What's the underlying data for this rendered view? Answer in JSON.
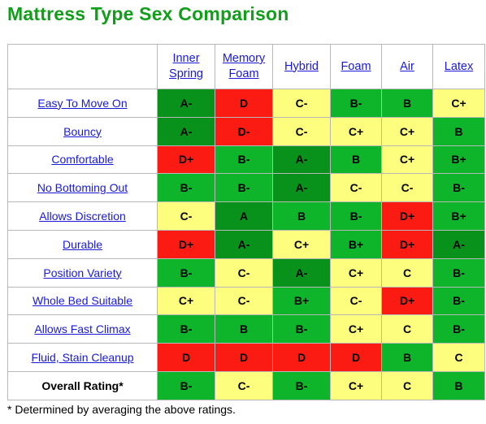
{
  "title": "Mattress Type Sex Comparison",
  "columns": [
    {
      "line1": "Inner",
      "line2": "Spring"
    },
    {
      "line1": "Memory",
      "line2": "Foam"
    },
    {
      "line1": "Hybrid",
      "line2": ""
    },
    {
      "line1": "Foam",
      "line2": ""
    },
    {
      "line1": "Air",
      "line2": ""
    },
    {
      "line1": "Latex",
      "line2": ""
    }
  ],
  "rows": [
    {
      "label": "Easy To Move On",
      "link": true,
      "cells": [
        {
          "grade": "A-",
          "color": "dark-green"
        },
        {
          "grade": "D",
          "color": "red"
        },
        {
          "grade": "C-",
          "color": "yellow"
        },
        {
          "grade": "B-",
          "color": "green"
        },
        {
          "grade": "B",
          "color": "green"
        },
        {
          "grade": "C+",
          "color": "yellow"
        }
      ]
    },
    {
      "label": "Bouncy",
      "link": true,
      "cells": [
        {
          "grade": "A-",
          "color": "dark-green"
        },
        {
          "grade": "D-",
          "color": "red"
        },
        {
          "grade": "C-",
          "color": "yellow"
        },
        {
          "grade": "C+",
          "color": "yellow"
        },
        {
          "grade": "C+",
          "color": "yellow"
        },
        {
          "grade": "B",
          "color": "green"
        }
      ]
    },
    {
      "label": "Comfortable",
      "link": true,
      "cells": [
        {
          "grade": "D+",
          "color": "red"
        },
        {
          "grade": "B-",
          "color": "green"
        },
        {
          "grade": "A-",
          "color": "dark-green"
        },
        {
          "grade": "B",
          "color": "green"
        },
        {
          "grade": "C+",
          "color": "yellow"
        },
        {
          "grade": "B+",
          "color": "green"
        }
      ]
    },
    {
      "label": "No Bottoming Out",
      "link": true,
      "cells": [
        {
          "grade": "B-",
          "color": "green"
        },
        {
          "grade": "B-",
          "color": "green"
        },
        {
          "grade": "A-",
          "color": "dark-green"
        },
        {
          "grade": "C-",
          "color": "yellow"
        },
        {
          "grade": "C-",
          "color": "yellow"
        },
        {
          "grade": "B-",
          "color": "green"
        }
      ]
    },
    {
      "label": "Allows Discretion",
      "link": true,
      "cells": [
        {
          "grade": "C-",
          "color": "yellow"
        },
        {
          "grade": "A",
          "color": "dark-green"
        },
        {
          "grade": "B",
          "color": "green"
        },
        {
          "grade": "B-",
          "color": "green"
        },
        {
          "grade": "D+",
          "color": "red"
        },
        {
          "grade": "B+",
          "color": "green"
        }
      ]
    },
    {
      "label": "Durable",
      "link": true,
      "cells": [
        {
          "grade": "D+",
          "color": "red"
        },
        {
          "grade": "A-",
          "color": "dark-green"
        },
        {
          "grade": "C+",
          "color": "yellow"
        },
        {
          "grade": "B+",
          "color": "green"
        },
        {
          "grade": "D+",
          "color": "red"
        },
        {
          "grade": "A-",
          "color": "dark-green"
        }
      ]
    },
    {
      "label": "Position Variety",
      "link": true,
      "cells": [
        {
          "grade": "B-",
          "color": "green"
        },
        {
          "grade": "C-",
          "color": "yellow"
        },
        {
          "grade": "A-",
          "color": "dark-green"
        },
        {
          "grade": "C+",
          "color": "yellow"
        },
        {
          "grade": "C",
          "color": "yellow"
        },
        {
          "grade": "B-",
          "color": "green"
        }
      ]
    },
    {
      "label": "Whole Bed Suitable",
      "link": true,
      "cells": [
        {
          "grade": "C+",
          "color": "yellow"
        },
        {
          "grade": "C-",
          "color": "yellow"
        },
        {
          "grade": "B+",
          "color": "green"
        },
        {
          "grade": "C-",
          "color": "yellow"
        },
        {
          "grade": "D+",
          "color": "red"
        },
        {
          "grade": "B-",
          "color": "green"
        }
      ]
    },
    {
      "label": "Allows Fast Climax",
      "link": true,
      "cells": [
        {
          "grade": "B-",
          "color": "green"
        },
        {
          "grade": "B",
          "color": "green"
        },
        {
          "grade": "B-",
          "color": "green"
        },
        {
          "grade": "C+",
          "color": "yellow"
        },
        {
          "grade": "C",
          "color": "yellow"
        },
        {
          "grade": "B-",
          "color": "green"
        }
      ]
    },
    {
      "label": "Fluid, Stain Cleanup",
      "link": true,
      "cells": [
        {
          "grade": "D",
          "color": "red"
        },
        {
          "grade": "D",
          "color": "red"
        },
        {
          "grade": "D",
          "color": "red"
        },
        {
          "grade": "D",
          "color": "red"
        },
        {
          "grade": "B",
          "color": "green"
        },
        {
          "grade": "C",
          "color": "yellow"
        }
      ]
    },
    {
      "label": "Overall Rating*",
      "link": false,
      "cells": [
        {
          "grade": "B-",
          "color": "green"
        },
        {
          "grade": "C-",
          "color": "yellow"
        },
        {
          "grade": "B-",
          "color": "green"
        },
        {
          "grade": "C+",
          "color": "yellow"
        },
        {
          "grade": "C",
          "color": "yellow"
        },
        {
          "grade": "B",
          "color": "green"
        }
      ]
    }
  ],
  "footnote": "* Determined by averaging the above ratings.",
  "palette": {
    "green": "#0eb52a",
    "dark-green": "#08921c",
    "yellow": "#fdfd7e",
    "red": "#fc1b12",
    "link": "#1a1ad6",
    "title": "#129e1a"
  }
}
